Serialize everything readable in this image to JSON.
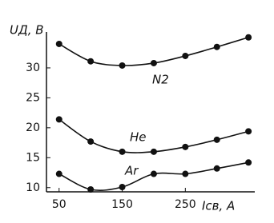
{
  "chart_data": {
    "type": "line",
    "y_label": "UД, В",
    "x_label": "Iсв, A",
    "x": [
      50,
      100,
      150,
      200,
      250,
      300,
      350
    ],
    "series": [
      {
        "name": "N2",
        "color": "#111111",
        "values": [
          34,
          31.1,
          30.4,
          30.8,
          32,
          33.5,
          35.1
        ]
      },
      {
        "name": "He",
        "color": "#111111",
        "values": [
          21.4,
          17.7,
          16,
          16,
          16.8,
          18,
          19.4
        ]
      },
      {
        "name": "Ar",
        "color": "#111111",
        "values": [
          12.3,
          9.7,
          10.1,
          12.3,
          12.3,
          13.2,
          14.2
        ]
      }
    ],
    "xlim": [
      30,
      360
    ],
    "xticks": [
      50,
      150,
      250
    ],
    "ylim": [
      9.3,
      36
    ],
    "yticks": [
      10,
      15,
      20,
      25,
      30
    ]
  }
}
